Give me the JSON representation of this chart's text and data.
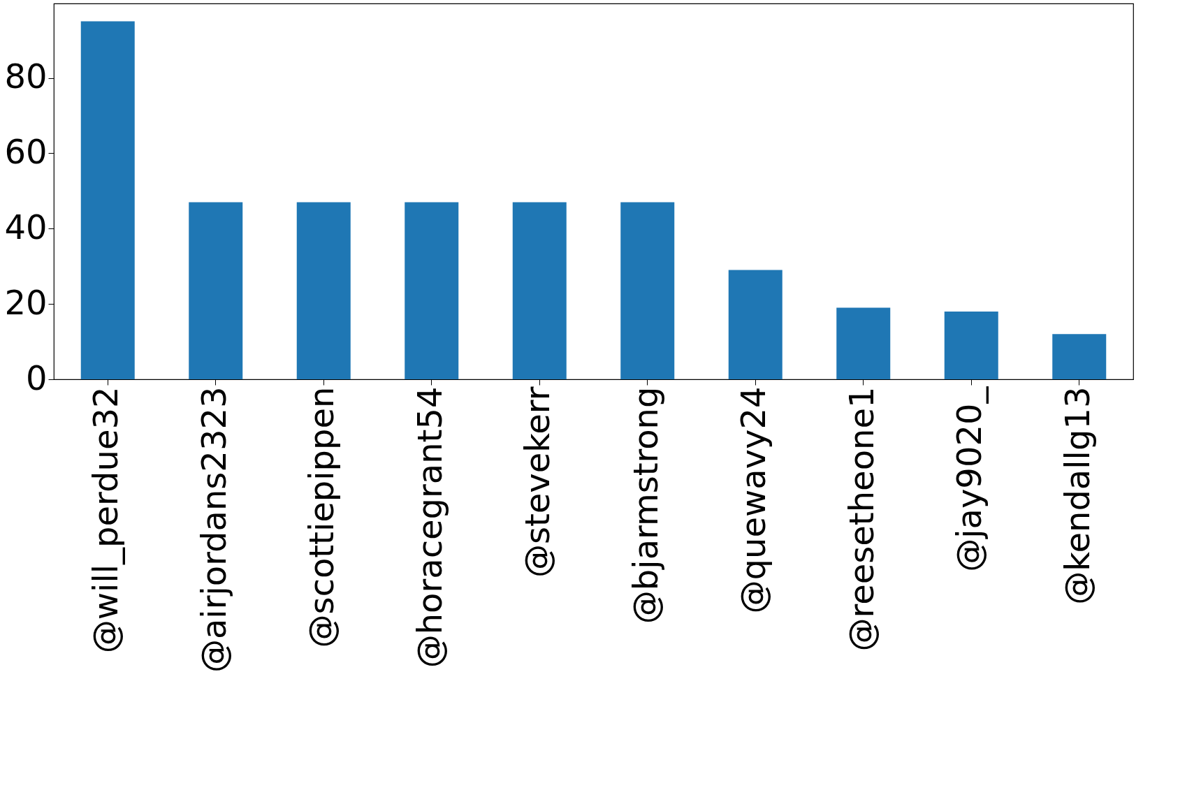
{
  "chart_data": {
    "type": "bar",
    "categories": [
      "@will_perdue32",
      "@airjordans2323",
      "@scottiepippen",
      "@horacegrant54",
      "@stevekerr",
      "@bjarmstrong",
      "@quewavy24",
      "@reesetheone1",
      "@jay9020_",
      "@kendallg13"
    ],
    "values": [
      95,
      47,
      47,
      47,
      47,
      47,
      29,
      19,
      18,
      12
    ],
    "color": "#1f77b4",
    "ylim": [
      0,
      99.75
    ],
    "yticks": [
      0,
      20,
      40,
      60,
      80
    ],
    "grid": false
  }
}
